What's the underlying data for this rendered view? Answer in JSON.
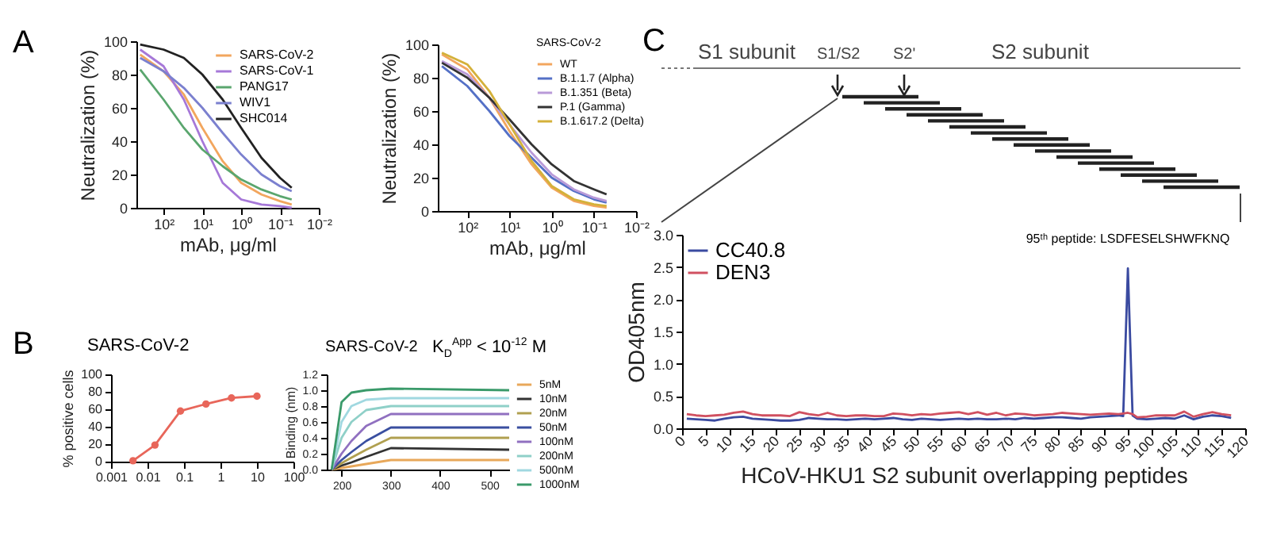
{
  "chart_data": [
    {
      "type": "line",
      "annotations": [
        "A"
      ],
      "xlabel": "mAb, μg/ml",
      "ylabel": "Neutralization (%)",
      "log": "x",
      "xlim": [
        500,
        0.01
      ],
      "xticks": [
        {
          "value": 100,
          "label": "10²"
        },
        {
          "value": 10,
          "label": "10¹"
        },
        {
          "value": 1,
          "label": "10⁰"
        },
        {
          "value": 0.1,
          "label": "10⁻¹"
        },
        {
          "value": 0.01,
          "label": "10⁻²"
        }
      ],
      "ylim": [
        0,
        100
      ],
      "yticks": [
        0,
        20,
        40,
        60,
        80,
        100
      ],
      "grid": false,
      "legend": "top right",
      "line_style": "solid",
      "x": [
        400,
        100,
        30,
        10,
        3,
        1,
        0.3,
        0.1,
        0.05
      ],
      "series": [
        {
          "name": "SARS-CoV-2",
          "color": "#f2a65e",
          "values": [
            92,
            82,
            68,
            48,
            28,
            15,
            8,
            4,
            2
          ]
        },
        {
          "name": "SARS-CoV-1",
          "color": "#a678d8",
          "values": [
            95,
            85,
            65,
            40,
            15,
            5,
            2,
            1,
            0
          ]
        },
        {
          "name": "PANG17",
          "color": "#5aa66e",
          "values": [
            83,
            65,
            48,
            35,
            25,
            17,
            11,
            7,
            5
          ]
        },
        {
          "name": "WIV1",
          "color": "#7b80cf",
          "values": [
            90,
            82,
            72,
            60,
            45,
            32,
            20,
            13,
            10
          ]
        },
        {
          "name": "SHC014",
          "color": "#222222",
          "values": [
            98,
            95,
            90,
            80,
            65,
            48,
            30,
            18,
            12
          ]
        }
      ]
    },
    {
      "type": "line",
      "legend_title": "SARS-CoV-2",
      "xlabel": "mAb, μg/ml",
      "ylabel": "Neutralization (%)",
      "log": "x",
      "xlim": [
        500,
        0.01
      ],
      "xticks": [
        {
          "value": 100,
          "label": "10²"
        },
        {
          "value": 10,
          "label": "10¹"
        },
        {
          "value": 1,
          "label": "10⁰"
        },
        {
          "value": 0.1,
          "label": "10⁻¹"
        },
        {
          "value": 0.01,
          "label": "10⁻²"
        }
      ],
      "ylim": [
        0,
        100
      ],
      "yticks": [
        0,
        20,
        40,
        60,
        80,
        100
      ],
      "grid": false,
      "legend": "top right",
      "line_style": "solid",
      "x": [
        400,
        100,
        30,
        10,
        3,
        1,
        0.3,
        0.1,
        0.05
      ],
      "series": [
        {
          "name": "WT",
          "color": "#f2a65e",
          "values": [
            94,
            85,
            68,
            48,
            28,
            14,
            6,
            3,
            2
          ]
        },
        {
          "name": "B.1.1.7 (Alpha)",
          "color": "#5470c6",
          "values": [
            87,
            75,
            60,
            45,
            32,
            20,
            12,
            7,
            5
          ]
        },
        {
          "name": "B.1.351 (Beta)",
          "color": "#b99ad8",
          "values": [
            90,
            82,
            68,
            52,
            35,
            22,
            13,
            8,
            6
          ]
        },
        {
          "name": "P.1 (Gamma)",
          "color": "#333333",
          "values": [
            89,
            80,
            68,
            55,
            40,
            28,
            18,
            13,
            10
          ]
        },
        {
          "name": "B.1.617.2 (Delta)",
          "color": "#d4b13a",
          "values": [
            95,
            88,
            72,
            52,
            30,
            15,
            7,
            4,
            3
          ]
        }
      ]
    },
    {
      "type": "line",
      "title": "SARS-CoV-2",
      "annotations": [
        "B"
      ],
      "ylabel": "% positive cells",
      "log": "x",
      "xlim": [
        0.001,
        100
      ],
      "xticks": [
        0.001,
        0.01,
        0.1,
        1,
        10,
        100
      ],
      "ylim": [
        0,
        100
      ],
      "yticks": [
        0,
        20,
        40,
        60,
        80,
        100
      ],
      "grid": false,
      "marker": "circle",
      "line_style": "solid",
      "x": [
        0.004,
        0.016,
        0.08,
        0.4,
        2,
        10
      ],
      "series": [
        {
          "color": "#e8665a",
          "values": [
            1,
            19,
            58,
            66,
            73,
            75
          ]
        }
      ]
    },
    {
      "type": "line",
      "title": "SARS-CoV-2",
      "subtitle": "K$_{D}$$^{App}$ < 10$^{-12}$ M",
      "ylabel": "Binding (nm)",
      "xlim": [
        170,
        540
      ],
      "xticks": [
        200,
        300,
        400,
        500
      ],
      "ylim": [
        0,
        1.2
      ],
      "yticks": [
        {
          "value": 0,
          "label": "0.0"
        },
        0.2,
        0.4,
        0.6,
        0.8,
        {
          "value": 1,
          "label": "1.0"
        },
        1.2
      ],
      "grid": false,
      "legend": "right",
      "line_style": "solid",
      "x": [
        180,
        200,
        220,
        250,
        300,
        540
      ],
      "series": [
        {
          "name": "5nM",
          "color": "#e8a85a",
          "values": [
            0,
            0.02,
            0.04,
            0.07,
            0.12,
            0.12
          ]
        },
        {
          "name": "10nM",
          "color": "#333333",
          "values": [
            0,
            0.05,
            0.09,
            0.16,
            0.27,
            0.25
          ]
        },
        {
          "name": "20nM",
          "color": "#b0a050",
          "values": [
            0,
            0.08,
            0.15,
            0.25,
            0.4,
            0.4
          ]
        },
        {
          "name": "50nM",
          "color": "#3a4fa0",
          "values": [
            0,
            0.12,
            0.22,
            0.36,
            0.53,
            0.53
          ]
        },
        {
          "name": "100nM",
          "color": "#9070c0",
          "values": [
            0,
            0.2,
            0.36,
            0.55,
            0.7,
            0.7
          ]
        },
        {
          "name": "200nM",
          "color": "#8fd0c8",
          "values": [
            0,
            0.4,
            0.6,
            0.75,
            0.8,
            0.8
          ]
        },
        {
          "name": "500nM",
          "color": "#a0d8e0",
          "values": [
            0,
            0.6,
            0.8,
            0.88,
            0.9,
            0.9
          ]
        },
        {
          "name": "1000nM",
          "color": "#3a9a6a",
          "values": [
            0,
            0.85,
            0.97,
            1.0,
            1.02,
            1.0
          ]
        }
      ]
    },
    {
      "type": "line",
      "annotations": [
        "C",
        "S1 subunit",
        "S1/S2",
        "S2'",
        "S2 subunit",
        {
          "text": "95ᵗʰ peptide: LSDFESELSHWFKNQ",
          "x": 95,
          "y": 2.48
        }
      ],
      "xlabel": "HCoV-HKU1 S2 subunit overlapping peptides",
      "ylabel": "OD405nm",
      "xlim": [
        0,
        120
      ],
      "xticks": [
        0,
        5,
        10,
        15,
        20,
        25,
        30,
        35,
        40,
        45,
        50,
        55,
        60,
        65,
        70,
        75,
        80,
        85,
        90,
        95,
        100,
        105,
        110,
        115,
        120
      ],
      "ylim": [
        0,
        3
      ],
      "yticks": [
        {
          "value": 0,
          "label": "0.0"
        },
        0.5,
        {
          "value": 1,
          "label": "1.0"
        },
        1.5,
        {
          "value": 2,
          "label": "2.0"
        },
        2.5,
        {
          "value": 3,
          "label": "3.0"
        }
      ],
      "grid": false,
      "legend": "top left",
      "line_style": "solid",
      "x": [
        1,
        3,
        5,
        7,
        9,
        11,
        13,
        15,
        17,
        19,
        21,
        23,
        25,
        27,
        29,
        31,
        33,
        35,
        37,
        39,
        41,
        43,
        45,
        47,
        49,
        51,
        53,
        55,
        57,
        59,
        61,
        63,
        65,
        67,
        69,
        71,
        73,
        75,
        77,
        79,
        81,
        83,
        85,
        87,
        89,
        91,
        93,
        94,
        95,
        96,
        97,
        99,
        101,
        103,
        105,
        107,
        109,
        111,
        113,
        115,
        117
      ],
      "series": [
        {
          "name": "CC40.8",
          "color": "#3a4aa0",
          "values": [
            0.15,
            0.14,
            0.13,
            0.12,
            0.15,
            0.17,
            0.18,
            0.15,
            0.14,
            0.13,
            0.12,
            0.12,
            0.13,
            0.16,
            0.15,
            0.14,
            0.14,
            0.13,
            0.14,
            0.15,
            0.14,
            0.15,
            0.16,
            0.14,
            0.13,
            0.15,
            0.14,
            0.13,
            0.14,
            0.15,
            0.14,
            0.15,
            0.14,
            0.14,
            0.15,
            0.14,
            0.16,
            0.15,
            0.16,
            0.17,
            0.17,
            0.16,
            0.15,
            0.17,
            0.18,
            0.19,
            0.2,
            0.19,
            2.48,
            0.2,
            0.15,
            0.14,
            0.15,
            0.16,
            0.15,
            0.2,
            0.14,
            0.18,
            0.2,
            0.19,
            0.16
          ]
        },
        {
          "name": "DEN3",
          "color": "#d05060",
          "values": [
            0.22,
            0.2,
            0.19,
            0.2,
            0.21,
            0.24,
            0.26,
            0.22,
            0.2,
            0.2,
            0.2,
            0.19,
            0.25,
            0.22,
            0.2,
            0.24,
            0.2,
            0.19,
            0.2,
            0.2,
            0.19,
            0.19,
            0.23,
            0.22,
            0.2,
            0.22,
            0.21,
            0.23,
            0.24,
            0.25,
            0.22,
            0.25,
            0.21,
            0.24,
            0.2,
            0.23,
            0.22,
            0.2,
            0.21,
            0.22,
            0.24,
            0.23,
            0.22,
            0.21,
            0.22,
            0.23,
            0.22,
            0.23,
            0.24,
            0.22,
            0.17,
            0.18,
            0.2,
            0.2,
            0.2,
            0.26,
            0.18,
            0.22,
            0.25,
            0.22,
            0.2
          ]
        }
      ]
    }
  ]
}
